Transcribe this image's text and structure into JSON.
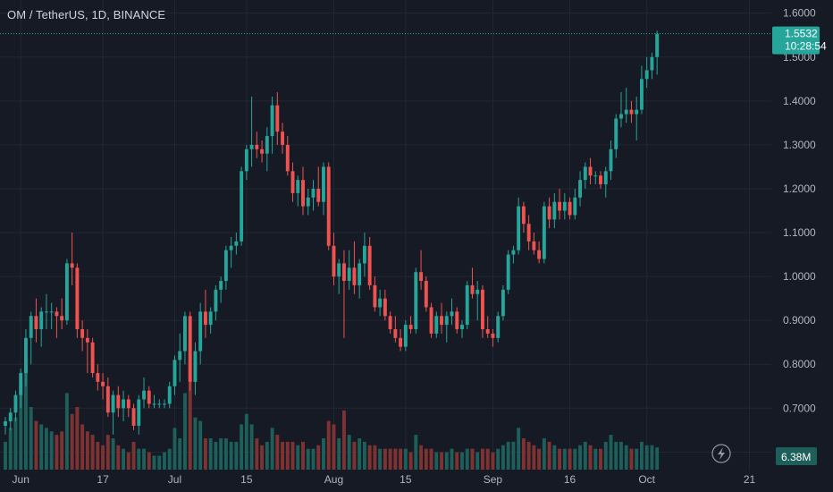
{
  "header": {
    "title": "OM / TetherUS, 1D, BINANCE"
  },
  "price_tag": {
    "price": "1.5532",
    "countdown": "10:28:54"
  },
  "volume_tag": {
    "value": "6.38M"
  },
  "icons": {
    "replay": "lightning-icon"
  },
  "colors": {
    "up": "#26a69a",
    "down": "#ef5350",
    "up_vol": "#1d5f5a",
    "down_vol": "#7f3232",
    "background": "#161a25",
    "grid": "#232733"
  },
  "chart_data": {
    "type": "candlestick",
    "ylim": [
      0.56,
      1.63
    ],
    "yticks": [
      0.6,
      0.7,
      0.8,
      0.9,
      1.0,
      1.1,
      1.2,
      1.3,
      1.4,
      1.5,
      1.6
    ],
    "ytick_labels": [
      "0.6000",
      "0.7000",
      "0.8000",
      "0.9000",
      "1.0000",
      "1.1000",
      "1.2000",
      "1.3000",
      "1.4000",
      "1.5000",
      "1.6000"
    ],
    "xtick_labels": [
      {
        "label": "Jun",
        "date": "2024-06-01"
      },
      {
        "label": "17",
        "date": "2024-06-17"
      },
      {
        "label": "Jul",
        "date": "2024-07-01"
      },
      {
        "label": "15",
        "date": "2024-07-15"
      },
      {
        "label": "Aug",
        "date": "2024-08-01"
      },
      {
        "label": "15",
        "date": "2024-08-15"
      },
      {
        "label": "Sep",
        "date": "2024-09-01"
      },
      {
        "label": "16",
        "date": "2024-09-16"
      },
      {
        "label": "Oct",
        "date": "2024-10-01"
      },
      {
        "label": "21",
        "date": "2024-10-21"
      }
    ],
    "start_date": "2024-05-29",
    "x_axis_end_date": "2024-10-23",
    "last_price": 1.5532,
    "ohlc": [
      [
        0.66,
        0.68,
        0.64,
        0.67
      ],
      [
        0.67,
        0.7,
        0.65,
        0.69
      ],
      [
        0.69,
        0.74,
        0.67,
        0.73
      ],
      [
        0.73,
        0.79,
        0.7,
        0.78
      ],
      [
        0.78,
        0.88,
        0.75,
        0.86
      ],
      [
        0.86,
        0.92,
        0.8,
        0.91
      ],
      [
        0.91,
        0.95,
        0.85,
        0.88
      ],
      [
        0.88,
        0.93,
        0.84,
        0.92
      ],
      [
        0.92,
        0.96,
        0.88,
        0.92
      ],
      [
        0.92,
        0.94,
        0.88,
        0.92
      ],
      [
        0.92,
        0.93,
        0.86,
        0.91
      ],
      [
        0.91,
        0.95,
        0.88,
        0.9
      ],
      [
        0.9,
        1.04,
        0.89,
        1.03
      ],
      [
        1.03,
        1.1,
        0.98,
        1.02
      ],
      [
        1.02,
        1.03,
        0.86,
        0.88
      ],
      [
        0.88,
        0.9,
        0.83,
        0.86
      ],
      [
        0.86,
        0.88,
        0.78,
        0.85
      ],
      [
        0.85,
        0.86,
        0.77,
        0.78
      ],
      [
        0.78,
        0.8,
        0.74,
        0.76
      ],
      [
        0.76,
        0.78,
        0.72,
        0.75
      ],
      [
        0.75,
        0.77,
        0.68,
        0.69
      ],
      [
        0.69,
        0.74,
        0.64,
        0.73
      ],
      [
        0.73,
        0.75,
        0.68,
        0.7
      ],
      [
        0.7,
        0.74,
        0.67,
        0.72
      ],
      [
        0.72,
        0.73,
        0.68,
        0.7
      ],
      [
        0.7,
        0.71,
        0.65,
        0.66
      ],
      [
        0.66,
        0.73,
        0.64,
        0.72
      ],
      [
        0.72,
        0.77,
        0.7,
        0.74
      ],
      [
        0.74,
        0.75,
        0.7,
        0.71
      ],
      [
        0.71,
        0.73,
        0.7,
        0.71
      ],
      [
        0.71,
        0.72,
        0.7,
        0.71
      ],
      [
        0.71,
        0.72,
        0.7,
        0.71
      ],
      [
        0.71,
        0.76,
        0.7,
        0.75
      ],
      [
        0.75,
        0.82,
        0.73,
        0.81
      ],
      [
        0.81,
        0.87,
        0.76,
        0.83
      ],
      [
        0.83,
        0.92,
        0.8,
        0.91
      ],
      [
        0.91,
        0.92,
        0.74,
        0.76
      ],
      [
        0.76,
        0.85,
        0.73,
        0.83
      ],
      [
        0.83,
        0.94,
        0.8,
        0.92
      ],
      [
        0.92,
        0.97,
        0.86,
        0.89
      ],
      [
        0.89,
        0.93,
        0.87,
        0.92
      ],
      [
        0.92,
        0.98,
        0.9,
        0.97
      ],
      [
        0.97,
        1.0,
        0.94,
        0.99
      ],
      [
        0.99,
        1.07,
        0.97,
        1.06
      ],
      [
        1.06,
        1.09,
        1.02,
        1.07
      ],
      [
        1.07,
        1.1,
        1.05,
        1.08
      ],
      [
        1.08,
        1.25,
        1.07,
        1.24
      ],
      [
        1.24,
        1.3,
        1.22,
        1.29
      ],
      [
        1.29,
        1.41,
        1.25,
        1.3
      ],
      [
        1.3,
        1.33,
        1.27,
        1.29
      ],
      [
        1.29,
        1.31,
        1.26,
        1.28
      ],
      [
        1.28,
        1.34,
        1.24,
        1.32
      ],
      [
        1.32,
        1.41,
        1.28,
        1.39
      ],
      [
        1.39,
        1.42,
        1.3,
        1.33
      ],
      [
        1.33,
        1.35,
        1.28,
        1.3
      ],
      [
        1.3,
        1.32,
        1.23,
        1.24
      ],
      [
        1.24,
        1.26,
        1.17,
        1.19
      ],
      [
        1.19,
        1.23,
        1.16,
        1.22
      ],
      [
        1.22,
        1.25,
        1.14,
        1.16
      ],
      [
        1.16,
        1.2,
        1.14,
        1.18
      ],
      [
        1.18,
        1.22,
        1.15,
        1.2
      ],
      [
        1.2,
        1.25,
        1.16,
        1.17
      ],
      [
        1.17,
        1.26,
        1.14,
        1.25
      ],
      [
        1.25,
        1.26,
        1.06,
        1.07
      ],
      [
        1.07,
        1.1,
        0.98,
        1.0
      ],
      [
        1.0,
        1.04,
        0.96,
        1.03
      ],
      [
        1.03,
        1.06,
        0.86,
        0.99
      ],
      [
        0.99,
        1.06,
        0.97,
        1.02
      ],
      [
        1.02,
        1.08,
        0.96,
        0.98
      ],
      [
        0.98,
        1.04,
        0.95,
        1.03
      ],
      [
        1.03,
        1.1,
        1.0,
        1.07
      ],
      [
        1.07,
        1.09,
        0.97,
        0.98
      ],
      [
        0.98,
        1.0,
        0.92,
        0.93
      ],
      [
        0.93,
        0.97,
        0.91,
        0.95
      ],
      [
        0.95,
        0.97,
        0.9,
        0.91
      ],
      [
        0.91,
        0.92,
        0.87,
        0.88
      ],
      [
        0.88,
        0.91,
        0.85,
        0.86
      ],
      [
        0.86,
        0.88,
        0.83,
        0.84
      ],
      [
        0.84,
        0.9,
        0.83,
        0.89
      ],
      [
        0.89,
        0.91,
        0.87,
        0.88
      ],
      [
        0.88,
        1.02,
        0.87,
        1.01
      ],
      [
        1.01,
        1.06,
        0.97,
        0.99
      ],
      [
        0.99,
        1.0,
        0.92,
        0.93
      ],
      [
        0.93,
        0.94,
        0.86,
        0.87
      ],
      [
        0.87,
        0.92,
        0.86,
        0.91
      ],
      [
        0.91,
        0.94,
        0.87,
        0.89
      ],
      [
        0.89,
        0.92,
        0.85,
        0.91
      ],
      [
        0.91,
        0.95,
        0.89,
        0.92
      ],
      [
        0.92,
        0.93,
        0.87,
        0.88
      ],
      [
        0.88,
        0.9,
        0.86,
        0.89
      ],
      [
        0.89,
        0.99,
        0.88,
        0.98
      ],
      [
        0.98,
        1.02,
        0.95,
        0.96
      ],
      [
        0.96,
        0.99,
        0.9,
        0.97
      ],
      [
        0.97,
        0.98,
        0.86,
        0.88
      ],
      [
        0.88,
        0.91,
        0.86,
        0.87
      ],
      [
        0.87,
        0.88,
        0.84,
        0.86
      ],
      [
        0.86,
        0.92,
        0.85,
        0.91
      ],
      [
        0.91,
        0.98,
        0.9,
        0.97
      ],
      [
        0.97,
        1.06,
        0.96,
        1.05
      ],
      [
        1.05,
        1.07,
        1.03,
        1.06
      ],
      [
        1.06,
        1.18,
        1.05,
        1.16
      ],
      [
        1.16,
        1.17,
        1.1,
        1.12
      ],
      [
        1.12,
        1.14,
        1.06,
        1.08
      ],
      [
        1.08,
        1.1,
        1.05,
        1.06
      ],
      [
        1.06,
        1.08,
        1.03,
        1.04
      ],
      [
        1.04,
        1.17,
        1.03,
        1.16
      ],
      [
        1.16,
        1.18,
        1.11,
        1.13
      ],
      [
        1.13,
        1.19,
        1.11,
        1.17
      ],
      [
        1.17,
        1.2,
        1.13,
        1.15
      ],
      [
        1.15,
        1.19,
        1.13,
        1.17
      ],
      [
        1.17,
        1.18,
        1.13,
        1.14
      ],
      [
        1.14,
        1.2,
        1.13,
        1.18
      ],
      [
        1.18,
        1.24,
        1.16,
        1.22
      ],
      [
        1.22,
        1.26,
        1.2,
        1.25
      ],
      [
        1.25,
        1.27,
        1.21,
        1.23
      ],
      [
        1.23,
        1.24,
        1.21,
        1.23
      ],
      [
        1.23,
        1.24,
        1.2,
        1.21
      ],
      [
        1.21,
        1.25,
        1.18,
        1.24
      ],
      [
        1.24,
        1.31,
        1.22,
        1.29
      ],
      [
        1.29,
        1.37,
        1.27,
        1.36
      ],
      [
        1.36,
        1.42,
        1.34,
        1.37
      ],
      [
        1.37,
        1.43,
        1.35,
        1.38
      ],
      [
        1.38,
        1.4,
        1.35,
        1.37
      ],
      [
        1.37,
        1.41,
        1.31,
        1.38
      ],
      [
        1.38,
        1.48,
        1.37,
        1.45
      ],
      [
        1.45,
        1.5,
        1.43,
        1.47
      ],
      [
        1.47,
        1.51,
        1.45,
        1.5
      ],
      [
        1.5,
        1.56,
        1.46,
        1.5532
      ]
    ],
    "volume": [
      0.8,
      1.2,
      1.5,
      2.5,
      3.0,
      1.8,
      1.4,
      1.3,
      1.2,
      1.1,
      1.0,
      1.1,
      2.2,
      1.6,
      1.8,
      1.3,
      1.1,
      1.0,
      0.8,
      0.7,
      1.0,
      0.9,
      0.7,
      0.6,
      0.5,
      0.8,
      0.6,
      0.6,
      0.5,
      0.4,
      0.4,
      0.5,
      0.6,
      1.2,
      0.9,
      2.2,
      3.6,
      1.5,
      1.4,
      0.9,
      0.9,
      0.8,
      0.9,
      0.9,
      0.8,
      0.8,
      1.3,
      1.6,
      1.3,
      0.9,
      0.7,
      0.8,
      1.2,
      1.0,
      0.8,
      0.8,
      0.8,
      0.7,
      0.8,
      0.6,
      0.6,
      0.7,
      0.9,
      1.4,
      1.3,
      0.9,
      1.7,
      1.0,
      0.8,
      0.9,
      0.8,
      0.7,
      0.7,
      0.6,
      0.6,
      0.6,
      0.6,
      0.6,
      0.6,
      0.5,
      1.0,
      0.7,
      0.6,
      0.6,
      0.5,
      0.5,
      0.5,
      0.6,
      0.5,
      0.5,
      0.6,
      0.6,
      0.5,
      0.6,
      0.6,
      0.5,
      0.6,
      0.7,
      0.8,
      0.8,
      1.2,
      0.9,
      0.8,
      0.7,
      0.6,
      0.9,
      0.8,
      0.7,
      0.6,
      0.6,
      0.6,
      0.6,
      0.7,
      0.8,
      0.7,
      0.6,
      0.6,
      0.8,
      1.0,
      0.8,
      0.8,
      0.7,
      0.6,
      0.6,
      0.8,
      0.7,
      0.7,
      0.64
    ]
  }
}
